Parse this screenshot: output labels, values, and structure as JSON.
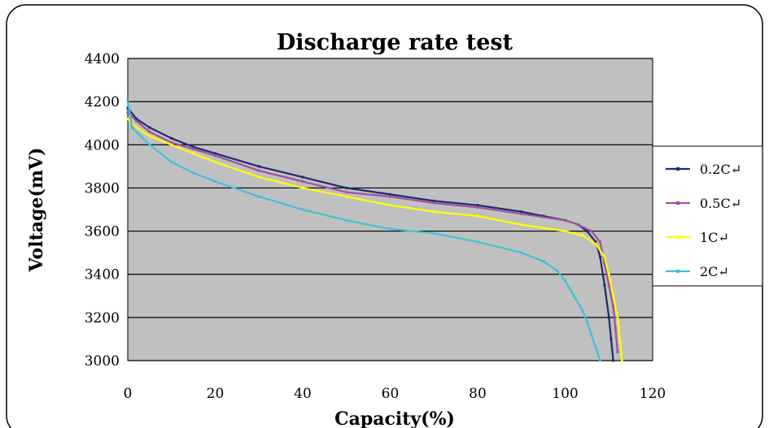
{
  "chart_data": {
    "type": "line",
    "title": "Discharge rate test",
    "xlabel": "Capacity(%)",
    "ylabel": "Voltage(mV)",
    "xlim": [
      0,
      120
    ],
    "ylim": [
      3000,
      4400
    ],
    "x_ticks": [
      "0",
      "20",
      "40",
      "60",
      "80",
      "100",
      "120"
    ],
    "y_ticks": [
      "3000",
      "3200",
      "3400",
      "3600",
      "3800",
      "4000",
      "4200",
      "4400"
    ],
    "grid": "horizontal",
    "plot_background": "#c0c0c0",
    "legend_position": "right",
    "series": [
      {
        "name": "0.2C↵",
        "color": "#1f2a6b",
        "x": [
          0,
          2,
          5,
          10,
          15,
          20,
          30,
          40,
          50,
          60,
          70,
          80,
          90,
          95,
          100,
          103,
          105,
          107,
          108,
          109,
          110,
          110.5,
          111
        ],
        "values": [
          4170,
          4120,
          4080,
          4030,
          3990,
          3960,
          3900,
          3850,
          3800,
          3770,
          3740,
          3720,
          3690,
          3670,
          3650,
          3630,
          3600,
          3550,
          3480,
          3350,
          3200,
          3100,
          3000
        ]
      },
      {
        "name": "0.5C↵",
        "color": "#a050a0",
        "x": [
          0,
          2,
          5,
          10,
          15,
          20,
          30,
          40,
          50,
          60,
          70,
          80,
          90,
          100,
          103,
          106,
          108,
          109,
          110,
          111,
          111.5,
          112
        ],
        "values": [
          4150,
          4110,
          4060,
          4010,
          3980,
          3950,
          3880,
          3830,
          3780,
          3760,
          3730,
          3710,
          3680,
          3650,
          3630,
          3600,
          3550,
          3450,
          3350,
          3250,
          3150,
          3040
        ]
      },
      {
        "name": "1C↵",
        "color": "#ffff00",
        "x": [
          0,
          2,
          5,
          10,
          15,
          20,
          30,
          40,
          50,
          60,
          70,
          80,
          90,
          100,
          104,
          107,
          109,
          110,
          111,
          112,
          112.5,
          113
        ],
        "values": [
          4120,
          4080,
          4040,
          4000,
          3960,
          3920,
          3850,
          3800,
          3760,
          3720,
          3690,
          3670,
          3630,
          3600,
          3580,
          3540,
          3480,
          3400,
          3300,
          3200,
          3100,
          3000
        ]
      },
      {
        "name": "2C↵",
        "color": "#40c0d8",
        "x": [
          0,
          1,
          3,
          5,
          10,
          15,
          20,
          30,
          40,
          50,
          60,
          70,
          80,
          90,
          95,
          98,
          100,
          102,
          104,
          105,
          106,
          107,
          108
        ],
        "values": [
          4200,
          4080,
          4040,
          4000,
          3920,
          3870,
          3830,
          3760,
          3700,
          3650,
          3610,
          3590,
          3550,
          3500,
          3460,
          3420,
          3370,
          3300,
          3230,
          3180,
          3120,
          3060,
          3000
        ]
      }
    ]
  }
}
